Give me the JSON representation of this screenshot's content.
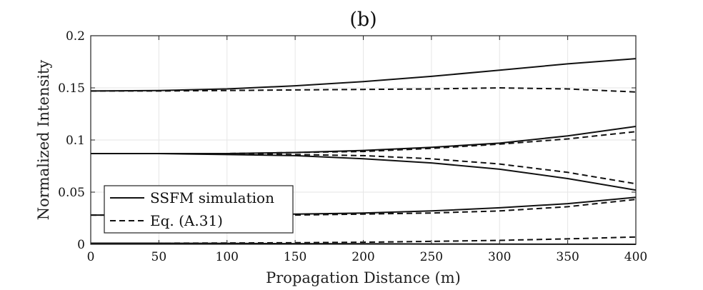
{
  "chart_data": {
    "type": "line",
    "title": "(b)",
    "xlabel": "Propagation Distance (m)",
    "ylabel": "Normalized Intensity",
    "xlim": [
      0,
      400
    ],
    "ylim": [
      0,
      0.2
    ],
    "xticks": [
      0,
      50,
      100,
      150,
      200,
      250,
      300,
      350,
      400
    ],
    "xtick_labels": [
      "0",
      "50",
      "100",
      "150",
      "200",
      "250",
      "300",
      "350",
      "400"
    ],
    "yticks": [
      0,
      0.05,
      0.1,
      0.15,
      0.2
    ],
    "ytick_labels": [
      "0",
      "0.05",
      "0.1",
      "0.15",
      "0.2"
    ],
    "grid": true,
    "legend": {
      "placement": "bottom-left",
      "entries": [
        {
          "label": "SSFM simulation",
          "style": "solid"
        },
        {
          "label": "Eq. (A.31)",
          "style": "dashed"
        }
      ]
    },
    "x": [
      0,
      50,
      100,
      150,
      200,
      250,
      300,
      350,
      400
    ],
    "series": [
      {
        "name": "SSFM simulation",
        "style": "solid",
        "values": [
          0.147,
          0.1475,
          0.149,
          0.152,
          0.156,
          0.161,
          0.167,
          0.173,
          0.178
        ]
      },
      {
        "name": "SSFM simulation",
        "style": "solid",
        "values": [
          0.087,
          0.087,
          0.087,
          0.088,
          0.09,
          0.093,
          0.097,
          0.104,
          0.113
        ]
      },
      {
        "name": "SSFM simulation",
        "style": "solid",
        "values": [
          0.087,
          0.087,
          0.086,
          0.085,
          0.082,
          0.078,
          0.072,
          0.063,
          0.052
        ]
      },
      {
        "name": "SSFM simulation",
        "style": "solid",
        "values": [
          0.028,
          0.028,
          0.028,
          0.029,
          0.03,
          0.032,
          0.035,
          0.039,
          0.045
        ]
      },
      {
        "name": "SSFM simulation",
        "style": "solid",
        "values": [
          0.001,
          0.001,
          0.0008,
          0.0006,
          0.0005,
          0.0003,
          0.0002,
          0.0001,
          0.0
        ]
      },
      {
        "name": "Eq. (A.31)",
        "style": "dashed",
        "values": [
          0.147,
          0.147,
          0.1475,
          0.148,
          0.1485,
          0.149,
          0.15,
          0.149,
          0.146
        ]
      },
      {
        "name": "Eq. (A.31)",
        "style": "dashed",
        "values": [
          0.087,
          0.087,
          0.087,
          0.088,
          0.089,
          0.092,
          0.096,
          0.101,
          0.108
        ]
      },
      {
        "name": "Eq. (A.31)",
        "style": "dashed",
        "values": [
          0.087,
          0.087,
          0.087,
          0.086,
          0.085,
          0.082,
          0.077,
          0.069,
          0.058
        ]
      },
      {
        "name": "Eq. (A.31)",
        "style": "dashed",
        "values": [
          0.028,
          0.028,
          0.028,
          0.028,
          0.029,
          0.03,
          0.032,
          0.036,
          0.043
        ]
      },
      {
        "name": "Eq. (A.31)",
        "style": "dashed",
        "values": [
          0.001,
          0.001,
          0.0012,
          0.0015,
          0.002,
          0.0028,
          0.0038,
          0.0052,
          0.007
        ]
      }
    ]
  }
}
